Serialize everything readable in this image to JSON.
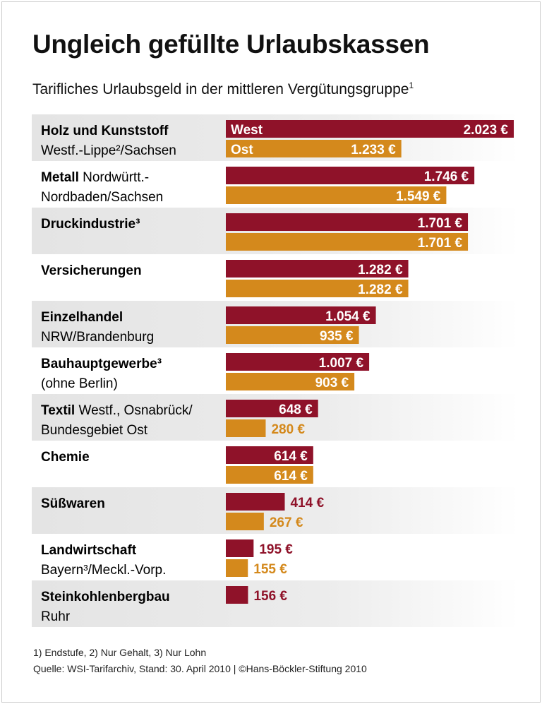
{
  "chart_data": {
    "type": "bar",
    "orientation": "horizontal",
    "title": "Ungleich gefüllte Urlaubskassen",
    "subtitle": "Tarifliches Urlaubsgeld in der mittleren Vergütungsgruppe",
    "subtitle_footnote": "1",
    "unit": "€",
    "series_labels": [
      "West",
      "Ost"
    ],
    "colors": {
      "West": "#8f1229",
      "Ost": "#d4891c",
      "band": "#e6e6e6"
    },
    "categories": [
      {
        "name": "Holz und Kunststoff",
        "region": "Westf.-Lippe²/Sachsen",
        "layout": "two-line"
      },
      {
        "name": "Metall",
        "region": "Nordwürtt.-",
        "region2": "Nordbaden/Sachsen",
        "layout": "inline"
      },
      {
        "name": "Druckindustrie³",
        "region": "",
        "layout": "two-line"
      },
      {
        "name": "Versicherungen",
        "region": "",
        "layout": "two-line"
      },
      {
        "name": "Einzelhandel",
        "region": "NRW/Brandenburg",
        "layout": "two-line"
      },
      {
        "name": "Bauhauptgewerbe³",
        "region": "(ohne Berlin)",
        "layout": "two-line"
      },
      {
        "name": "Textil",
        "region": "Westf., Osnabrück/",
        "region2": "Bundesgebiet Ost",
        "layout": "inline"
      },
      {
        "name": "Chemie",
        "region": "",
        "layout": "two-line"
      },
      {
        "name": "Süßwaren",
        "region": "",
        "layout": "two-line"
      },
      {
        "name": "Landwirtschaft",
        "region": "Bayern³/Meckl.-Vorp.",
        "layout": "two-line"
      },
      {
        "name": "Steinkohlenbergbau",
        "region": "Ruhr",
        "layout": "two-line"
      }
    ],
    "series": [
      {
        "name": "West",
        "values": [
          2023,
          1746,
          1701,
          1282,
          1054,
          1007,
          648,
          614,
          414,
          195,
          156
        ],
        "labels": [
          "2.023 €",
          "1.746 €",
          "1.701 €",
          "1.282 €",
          "1.054 €",
          "1.007 €",
          "648 €",
          "614 €",
          "414 €",
          "195 €",
          "156 €"
        ]
      },
      {
        "name": "Ost",
        "values": [
          1233,
          1549,
          1701,
          1282,
          935,
          903,
          280,
          614,
          267,
          155,
          null
        ],
        "labels": [
          "1.233 €",
          "1.549 €",
          "1.701 €",
          "1.282 €",
          "935 €",
          "903 €",
          "280 €",
          "614 €",
          "267 €",
          "155 €",
          null
        ]
      }
    ],
    "xlim": [
      0,
      2100
    ],
    "grid": false
  },
  "footer": {
    "notes": "1) Endstufe, 2) Nur Gehalt, 3) Nur Lohn",
    "source": "Quelle: WSI-Tarifarchiv, Stand: 30. April 2010 | ©Hans-Böckler-Stiftung 2010"
  }
}
